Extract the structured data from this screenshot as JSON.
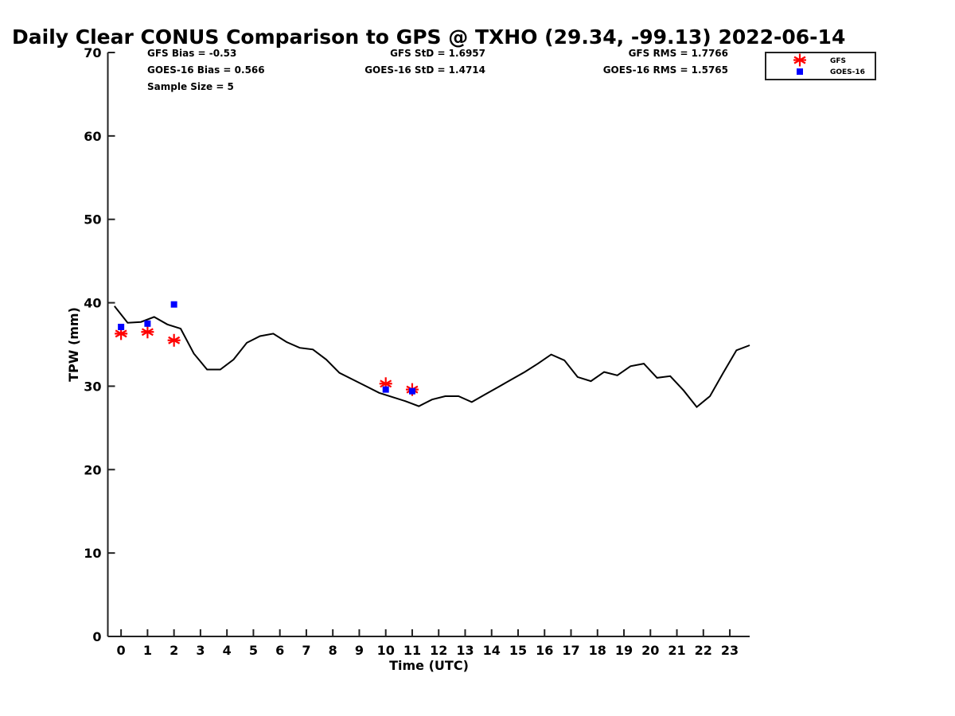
{
  "chart_data": {
    "type": "line",
    "title": "Daily Clear CONUS Comparison to GPS @ TXHO (29.34, -99.13) 2022-06-14",
    "xlabel": "Time (UTC)",
    "ylabel": "TPW (mm)",
    "xlim": [
      -0.5,
      23.75
    ],
    "ylim": [
      0,
      70
    ],
    "x_ticks": [
      0,
      1,
      2,
      3,
      4,
      5,
      6,
      7,
      8,
      9,
      10,
      11,
      12,
      13,
      14,
      15,
      16,
      17,
      18,
      19,
      20,
      21,
      22,
      23
    ],
    "y_ticks": [
      0,
      10,
      20,
      30,
      40,
      50,
      60,
      70
    ],
    "grid": false,
    "legend_position": "top-right",
    "stats": {
      "gfs_bias": "GFS Bias = -0.53",
      "goes_bias": "GOES-16 Bias = 0.566",
      "sample_size": "Sample Size = 5",
      "gfs_std": "GFS StD = 1.6957",
      "goes_std": "GOES-16 StD = 1.4714",
      "gfs_rms": "GFS RMS = 1.7766",
      "goes_rms": "GOES-16 RMS = 1.5765"
    },
    "series": [
      {
        "style": "line",
        "color": "#000000",
        "x": [
          -0.25,
          0.25,
          0.75,
          1.25,
          1.75,
          2.25,
          2.75,
          3.25,
          3.75,
          4.25,
          4.75,
          5.25,
          5.75,
          6.25,
          6.75,
          7.25,
          7.75,
          8.25,
          8.75,
          9.25,
          9.75,
          10.25,
          10.75,
          11.25,
          11.75,
          12.25,
          12.75,
          13.25,
          13.75,
          14.25,
          14.75,
          15.25,
          15.75,
          16.25,
          16.75,
          17.25,
          17.75,
          18.25,
          18.75,
          19.25,
          19.75,
          20.25,
          20.75,
          21.25,
          21.75,
          22.25,
          22.75,
          23.25,
          23.75
        ],
        "values": [
          39.6,
          37.6,
          37.7,
          38.3,
          37.4,
          36.9,
          33.9,
          32.0,
          32.0,
          33.2,
          35.2,
          36.0,
          36.3,
          35.3,
          34.6,
          34.4,
          33.2,
          31.6,
          30.8,
          30.0,
          29.2,
          28.7,
          28.2,
          27.6,
          28.4,
          28.8,
          28.8,
          28.1,
          29.0,
          29.9,
          30.8,
          31.7,
          32.7,
          33.8,
          33.1,
          31.1,
          30.6,
          31.7,
          31.3,
          32.4,
          32.7,
          31.0,
          31.2,
          29.5,
          27.5,
          28.8,
          31.6,
          34.3,
          34.9
        ]
      },
      {
        "name": "GFS",
        "style": "marker",
        "marker": "asterisk",
        "color": "#ff0000",
        "x": [
          0,
          1,
          2,
          10,
          11
        ],
        "values": [
          36.3,
          36.5,
          35.5,
          30.3,
          29.6
        ]
      },
      {
        "name": "GOES-16",
        "style": "marker",
        "marker": "square",
        "color": "#0000ff",
        "x": [
          0,
          1,
          2,
          10,
          11
        ],
        "values": [
          37.1,
          37.5,
          39.8,
          29.6,
          29.4
        ]
      }
    ]
  }
}
